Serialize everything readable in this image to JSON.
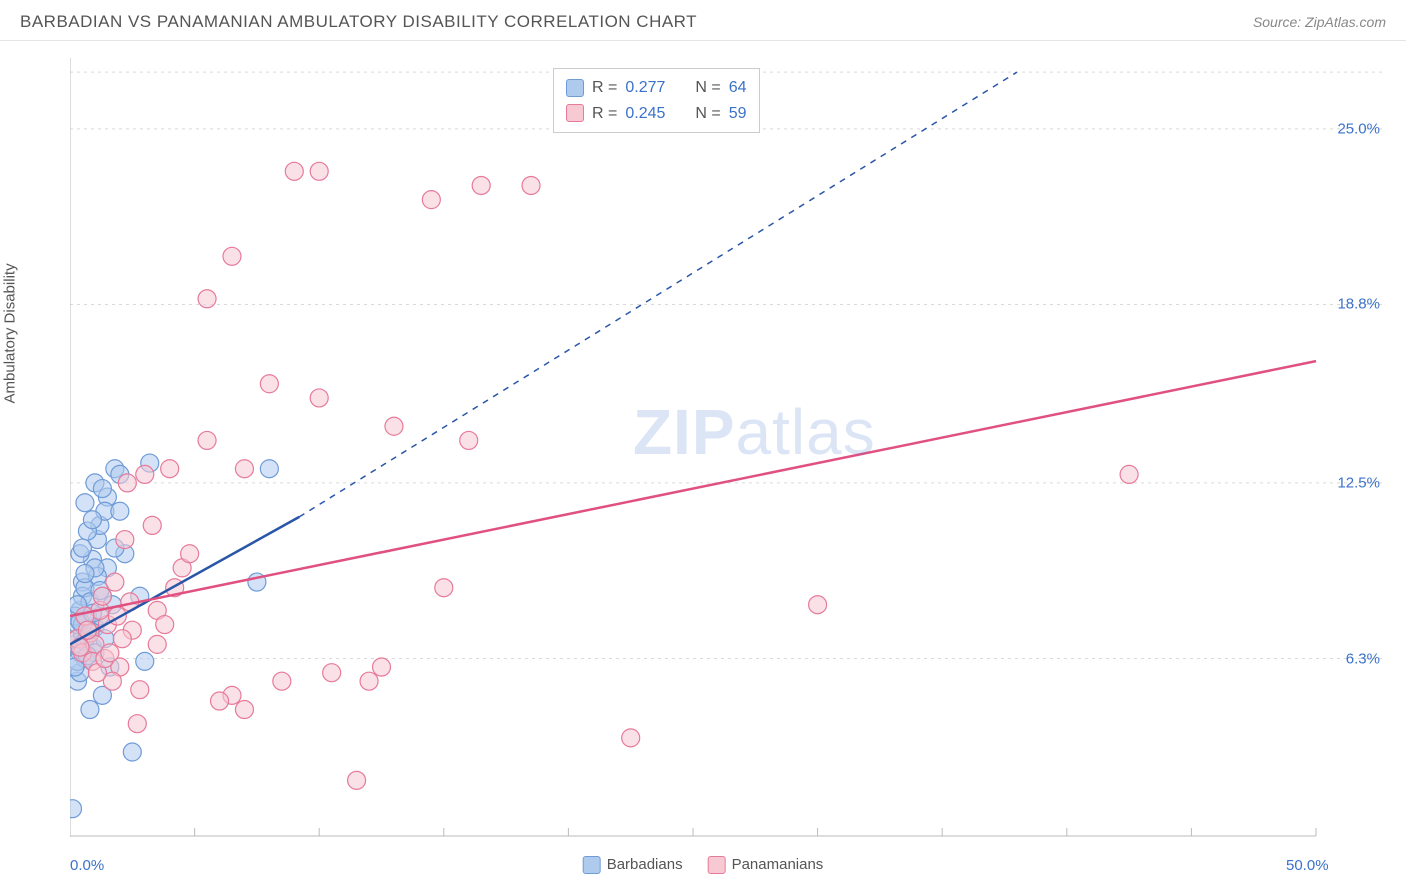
{
  "header": {
    "title": "BARBADIAN VS PANAMANIAN AMBULATORY DISABILITY CORRELATION CHART",
    "source": "Source: ZipAtlas.com"
  },
  "y_axis_label": "Ambulatory Disability",
  "watermark": {
    "zip": "ZIP",
    "atlas": "atlas"
  },
  "chart": {
    "type": "scatter",
    "xlim": [
      0,
      50
    ],
    "ylim": [
      0,
      27.5
    ],
    "grid_color": "#d9d9d9",
    "background_color": "#ffffff",
    "x_ticks": [
      0,
      5,
      10,
      15,
      20,
      25,
      30,
      35,
      40,
      45,
      50
    ],
    "y_gridlines": [
      6.3,
      12.5,
      18.8,
      25.0,
      27.0
    ],
    "y_tick_labels": [
      {
        "v": 6.3,
        "label": "6.3%"
      },
      {
        "v": 12.5,
        "label": "12.5%"
      },
      {
        "v": 18.8,
        "label": "18.8%"
      },
      {
        "v": 25.0,
        "label": "25.0%"
      }
    ],
    "x_left_label": "0.0%",
    "x_right_label": "50.0%",
    "series": [
      {
        "name": "Barbadians",
        "fill": "#aecbee",
        "stroke": "#6f9bd8",
        "line_color": "#2a56a8",
        "r": 0.277,
        "n": 64,
        "marker_radius": 9,
        "trend": {
          "x1": 0,
          "y1": 6.8,
          "x2": 9.2,
          "y2": 11.3,
          "x_dash_to": 38,
          "y_dash_to": 27.0
        },
        "points": [
          [
            0.1,
            1.0
          ],
          [
            0.2,
            6.8
          ],
          [
            0.3,
            7.0
          ],
          [
            0.4,
            6.5
          ],
          [
            0.5,
            7.2
          ],
          [
            0.3,
            7.5
          ],
          [
            0.6,
            6.9
          ],
          [
            0.7,
            7.1
          ],
          [
            0.4,
            8.0
          ],
          [
            0.8,
            7.3
          ],
          [
            0.9,
            6.7
          ],
          [
            1.0,
            7.4
          ],
          [
            0.5,
            9.0
          ],
          [
            1.1,
            10.5
          ],
          [
            1.2,
            11.0
          ],
          [
            0.6,
            11.8
          ],
          [
            1.3,
            8.5
          ],
          [
            1.5,
            12.0
          ],
          [
            1.0,
            12.5
          ],
          [
            1.8,
            13.0
          ],
          [
            2.0,
            12.8
          ],
          [
            2.2,
            10.0
          ],
          [
            1.5,
            9.5
          ],
          [
            1.7,
            8.2
          ],
          [
            0.8,
            4.5
          ],
          [
            1.3,
            5.0
          ],
          [
            2.5,
            3.0
          ],
          [
            2.8,
            8.5
          ],
          [
            3.0,
            6.2
          ],
          [
            1.2,
            7.8
          ],
          [
            0.9,
            9.8
          ],
          [
            0.7,
            10.8
          ],
          [
            1.4,
            11.5
          ],
          [
            1.6,
            6.0
          ],
          [
            0.3,
            5.5
          ],
          [
            0.4,
            5.8
          ],
          [
            0.6,
            6.3
          ],
          [
            0.2,
            7.8
          ],
          [
            0.5,
            8.5
          ],
          [
            1.0,
            6.5
          ],
          [
            8.0,
            13.0
          ],
          [
            7.5,
            9.0
          ],
          [
            2.0,
            11.5
          ],
          [
            1.8,
            10.2
          ],
          [
            3.2,
            13.2
          ],
          [
            0.3,
            6.2
          ],
          [
            0.7,
            7.8
          ],
          [
            1.1,
            9.2
          ],
          [
            0.4,
            10.0
          ],
          [
            0.6,
            8.8
          ],
          [
            0.9,
            11.2
          ],
          [
            1.3,
            12.3
          ],
          [
            0.2,
            6.0
          ],
          [
            0.5,
            7.5
          ],
          [
            0.8,
            8.3
          ],
          [
            1.0,
            9.5
          ],
          [
            1.4,
            7.0
          ],
          [
            0.3,
            8.2
          ],
          [
            0.6,
            9.3
          ],
          [
            0.4,
            7.6
          ],
          [
            0.7,
            6.4
          ],
          [
            0.9,
            7.9
          ],
          [
            1.2,
            8.7
          ],
          [
            0.5,
            10.2
          ]
        ]
      },
      {
        "name": "Panamanians",
        "fill": "#f6c9d3",
        "stroke": "#e77a9a",
        "line_color": "#e05080",
        "r": 0.245,
        "n": 59,
        "marker_radius": 9,
        "trend": {
          "x1": 0,
          "y1": 7.8,
          "x2": 50,
          "y2": 16.8
        },
        "points": [
          [
            0.3,
            7.0
          ],
          [
            0.5,
            6.5
          ],
          [
            0.8,
            7.2
          ],
          [
            1.0,
            6.8
          ],
          [
            1.5,
            7.5
          ],
          [
            2.0,
            6.0
          ],
          [
            2.5,
            7.3
          ],
          [
            3.0,
            12.8
          ],
          [
            3.5,
            6.8
          ],
          [
            4.0,
            13.0
          ],
          [
            4.5,
            9.5
          ],
          [
            5.5,
            19.0
          ],
          [
            5.5,
            14.0
          ],
          [
            6.5,
            20.5
          ],
          [
            6.5,
            5.0
          ],
          [
            7.0,
            4.5
          ],
          [
            6.0,
            4.8
          ],
          [
            7.0,
            13.0
          ],
          [
            8.0,
            16.0
          ],
          [
            8.5,
            5.5
          ],
          [
            9.0,
            23.5
          ],
          [
            10.0,
            23.5
          ],
          [
            10.0,
            15.5
          ],
          [
            10.5,
            5.8
          ],
          [
            11.5,
            2.0
          ],
          [
            12.0,
            5.5
          ],
          [
            12.5,
            6.0
          ],
          [
            13.0,
            14.5
          ],
          [
            14.5,
            22.5
          ],
          [
            15.0,
            8.8
          ],
          [
            16.0,
            14.0
          ],
          [
            16.5,
            23.0
          ],
          [
            18.5,
            23.0
          ],
          [
            22.5,
            3.5
          ],
          [
            30.0,
            8.2
          ],
          [
            42.5,
            12.8
          ],
          [
            1.2,
            8.0
          ],
          [
            1.8,
            9.0
          ],
          [
            2.2,
            10.5
          ],
          [
            2.8,
            5.2
          ],
          [
            3.3,
            11.0
          ],
          [
            0.6,
            7.8
          ],
          [
            0.9,
            6.2
          ],
          [
            1.3,
            8.5
          ],
          [
            1.7,
            5.5
          ],
          [
            2.3,
            12.5
          ],
          [
            4.2,
            8.8
          ],
          [
            0.4,
            6.7
          ],
          [
            0.7,
            7.3
          ],
          [
            1.1,
            5.8
          ],
          [
            1.4,
            6.3
          ],
          [
            1.9,
            7.8
          ],
          [
            2.4,
            8.3
          ],
          [
            3.5,
            8.0
          ],
          [
            1.6,
            6.5
          ],
          [
            2.1,
            7.0
          ],
          [
            2.7,
            4.0
          ],
          [
            3.8,
            7.5
          ],
          [
            4.8,
            10.0
          ]
        ]
      }
    ]
  },
  "bottom_legend": [
    {
      "label": "Barbadians",
      "fill": "#aecbee",
      "stroke": "#6f9bd8"
    },
    {
      "label": "Panamanians",
      "fill": "#f6c9d3",
      "stroke": "#e77a9a"
    }
  ],
  "stats_labels": {
    "r": "R",
    "eq": " = ",
    "n": "N"
  }
}
